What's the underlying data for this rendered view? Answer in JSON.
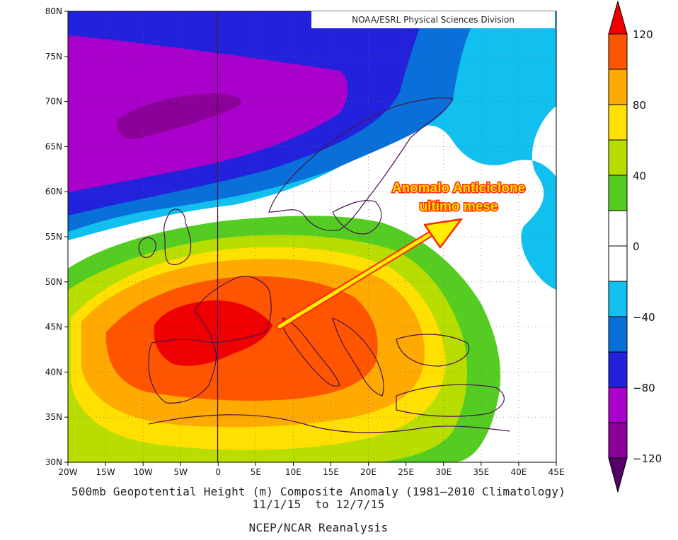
{
  "credit": "NOAA/ESRL Physical Sciences Division",
  "annotation": {
    "line1": "Anomalo Anticiclone",
    "line2": "ultimo mese"
  },
  "caption": {
    "title": "500mb Geopotential Height (m) Composite Anomaly (1981–2010 Climatology)",
    "dates": "11/1/15  to 12/7/15",
    "source": "NCEP/NCAR Reanalysis"
  },
  "map": {
    "lon_range": [
      -20,
      45
    ],
    "lat_range": [
      30,
      80
    ],
    "lon_ticks": [
      "20W",
      "15W",
      "10W",
      "5W",
      "0",
      "5E",
      "10E",
      "15E",
      "20E",
      "25E",
      "30E",
      "35E",
      "40E",
      "45E"
    ],
    "lat_ticks": [
      "80N",
      "75N",
      "70N",
      "65N",
      "60N",
      "55N",
      "50N",
      "45N",
      "40N",
      "35N",
      "30N"
    ]
  },
  "colorbar": {
    "labels": [
      "120",
      "80",
      "40",
      "0",
      "−40",
      "−80",
      "−120"
    ],
    "levels_top_to_bottom": [
      {
        "range": "> 120",
        "color": "#ee0000"
      },
      {
        "range": "100 to 120",
        "color": "#ff5500"
      },
      {
        "range": "80 to 100",
        "color": "#ffaa00"
      },
      {
        "range": "60 to 80",
        "color": "#ffe000"
      },
      {
        "range": "40 to 60",
        "color": "#b8dd00"
      },
      {
        "range": "20 to 40",
        "color": "#55cc22"
      },
      {
        "range": "0 to 20",
        "color": "#ffffff"
      },
      {
        "range": "-20 to 0",
        "color": "#ffffff"
      },
      {
        "range": "-40 to -20",
        "color": "#11c0ee"
      },
      {
        "range": "-60 to -40",
        "color": "#0870d8"
      },
      {
        "range": "-80 to -60",
        "color": "#2222dd"
      },
      {
        "range": "-100 to -80",
        "color": "#aa00cc"
      },
      {
        "range": "-120 to -100",
        "color": "#8a0099"
      },
      {
        "range": "< -120",
        "color": "#550066"
      }
    ]
  }
}
